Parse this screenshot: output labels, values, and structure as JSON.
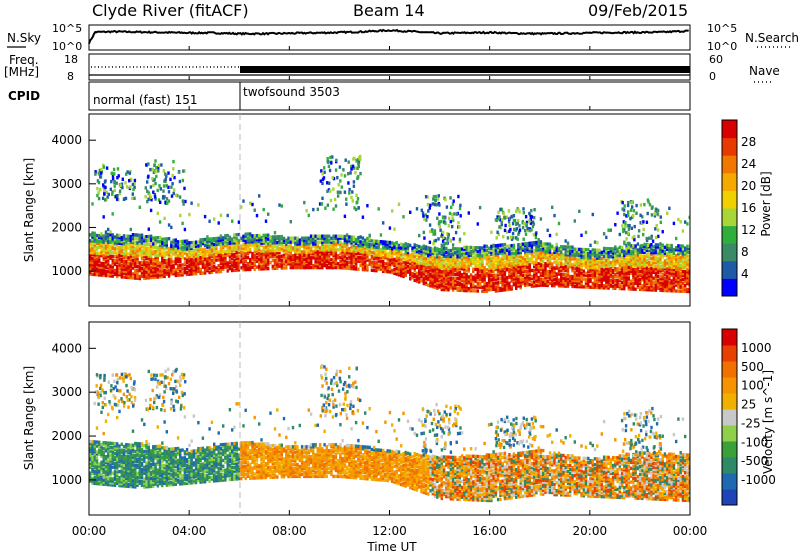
{
  "header": {
    "station": "Clyde River (fitACF)",
    "beam": "Beam 14",
    "date": "09/Feb/2015"
  },
  "chart_data": [
    {
      "type": "line",
      "panel": "noise",
      "left_label": "N.Sky",
      "right_label": "N.Search",
      "left_ticks": [
        "10^5",
        "10^0"
      ],
      "right_ticks": [
        "10^5",
        "10^0"
      ],
      "scale": "log",
      "y_range_log10": [
        0,
        5
      ],
      "x_range_hours": [
        0,
        24
      ],
      "series": [
        {
          "style": "solid",
          "x": [
            0,
            0.25,
            1,
            2,
            3,
            4,
            5,
            6,
            7,
            8,
            9,
            10,
            11,
            12,
            13,
            14,
            15,
            16,
            17,
            18,
            19,
            20,
            21,
            22,
            23,
            24
          ],
          "values_log10": [
            1.2,
            3.8,
            3.9,
            3.8,
            3.7,
            3.6,
            3.6,
            3.4,
            3.4,
            3.5,
            3.6,
            3.7,
            3.9,
            4.2,
            3.9,
            3.5,
            3.6,
            3.7,
            3.5,
            3.4,
            3.5,
            3.6,
            3.7,
            3.7,
            3.8,
            4.1
          ]
        }
      ]
    },
    {
      "type": "line",
      "panel": "frequency",
      "left_label": "Freq.",
      "left_unit": "[MHz]",
      "right_label": "Nave",
      "left_ticks": [
        18,
        8
      ],
      "right_ticks": [
        60,
        0
      ],
      "freq_range_mhz": [
        8,
        18
      ],
      "nave_range": [
        0,
        60
      ],
      "x_range_hours": [
        0,
        24
      ],
      "freq_mhz": 10,
      "nave_before_6": 22,
      "nave_after_6": 22
    },
    {
      "type": "table",
      "panel": "cpid",
      "label": "CPID",
      "segments": [
        {
          "start": 0,
          "end": 6,
          "name": "normal (fast) 151"
        },
        {
          "start": 6,
          "end": 24,
          "name": "twofsound 3503"
        }
      ]
    },
    {
      "type": "heatmap",
      "panel": "power",
      "ylabel": "Slant Range [km]",
      "yticks": [
        1000,
        2000,
        3000,
        4000
      ],
      "ylim": [
        200,
        4600
      ],
      "colorbar_label": "Power [dB]",
      "colorbar_ticks": [
        4,
        8,
        12,
        16,
        20,
        24,
        28
      ],
      "colorbar_colors": [
        "#0000ff",
        "#1e5aa8",
        "#3a8a66",
        "#2fae3c",
        "#a8d636",
        "#f0d000",
        "#f5a800",
        "#f07800",
        "#e83a00",
        "#d80000"
      ],
      "main_band_km": [
        [
          0,
          1000,
          1700
        ],
        [
          2,
          900,
          1650
        ],
        [
          4,
          1000,
          1500
        ],
        [
          6,
          1100,
          1700
        ],
        [
          8,
          1150,
          1600
        ],
        [
          10,
          1150,
          1650
        ],
        [
          12,
          1050,
          1500
        ],
        [
          14,
          650,
          1350
        ],
        [
          16,
          600,
          1400
        ],
        [
          18,
          750,
          1500
        ],
        [
          20,
          700,
          1300
        ],
        [
          22,
          650,
          1450
        ],
        [
          24,
          600,
          1400
        ]
      ],
      "scatter_regions": [
        [
          1,
          2600,
          3400
        ],
        [
          3,
          2500,
          3500
        ],
        [
          10,
          2400,
          3600
        ],
        [
          14,
          1600,
          2700
        ],
        [
          17,
          1700,
          2400
        ],
        [
          22,
          1500,
          2600
        ]
      ]
    },
    {
      "type": "heatmap",
      "panel": "velocity",
      "ylabel": "Slant Range [km]",
      "yticks": [
        1000,
        2000,
        3000,
        4000
      ],
      "ylim": [
        200,
        4600
      ],
      "colorbar_label": "Velocity [m s^-1]",
      "colorbar_ticks": [
        "1000",
        "500",
        "100",
        "25",
        "-25",
        "-100",
        "-500",
        "-1000"
      ],
      "colorbar_colors": [
        "#1e44b8",
        "#1e6ab0",
        "#2e8a66",
        "#3aa03a",
        "#8ed04a",
        "#c8c8c8",
        "#f0b000",
        "#f59400",
        "#f07000",
        "#e84000",
        "#d80000"
      ],
      "x_ticks": [
        "00:00",
        "04:00",
        "08:00",
        "12:00",
        "16:00",
        "20:00",
        "00:00"
      ],
      "x_label": "Time UT"
    }
  ]
}
